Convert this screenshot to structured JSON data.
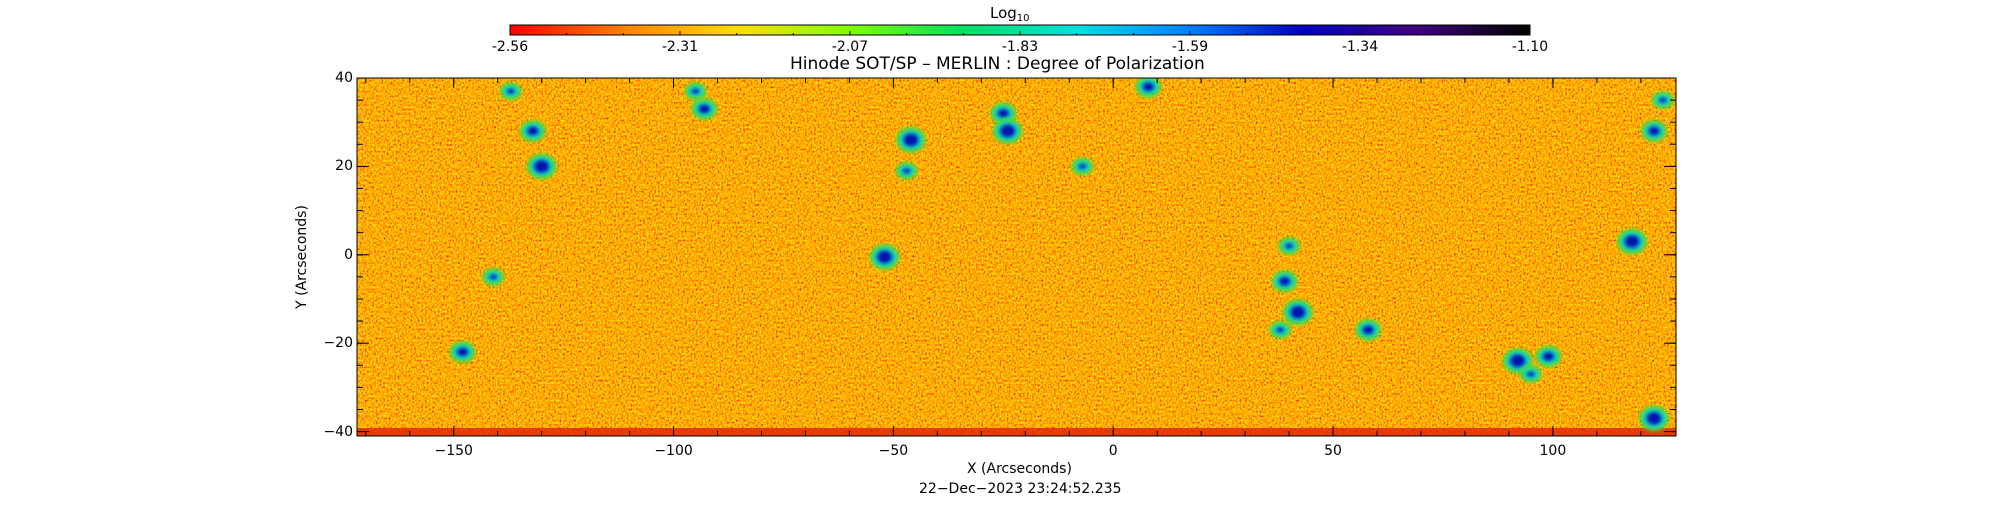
{
  "colorbar": {
    "title_main": "Log",
    "title_sub": "10",
    "ticks": [
      "-2.56",
      "-2.31",
      "-2.07",
      "-1.83",
      "-1.59",
      "-1.34",
      "-1.10"
    ],
    "range": [
      -2.56,
      -1.1
    ],
    "colors": [
      "#ff0000",
      "#ff8000",
      "#ffdd00",
      "#80ff00",
      "#00e060",
      "#00e0e0",
      "#0080ff",
      "#0000c0",
      "#400080",
      "#000000"
    ]
  },
  "chart_data": {
    "type": "heatmap",
    "title": "Hinode SOT/SP – MERLIN : Degree of Polarization",
    "xlabel": "X (Arcseconds)",
    "ylabel": "Y (Arcseconds)",
    "xlim": [
      -172,
      128
    ],
    "ylim": [
      -41,
      40
    ],
    "x_ticks": [
      -150,
      -100,
      -50,
      0,
      50,
      100
    ],
    "x_tick_labels": [
      "−150",
      "−100",
      "−50",
      "0",
      "50",
      "100"
    ],
    "y_ticks": [
      -40,
      -20,
      0,
      20,
      40
    ],
    "y_tick_labels": [
      "−40",
      "−20",
      "0",
      "20",
      "40"
    ],
    "colorscale_label": "Log10 degree of polarization",
    "value_range": [
      -2.56,
      -1.1
    ],
    "background_level": -2.4,
    "strong_polarization_patches": [
      {
        "x": -137,
        "y": 37
      },
      {
        "x": -132,
        "y": 28
      },
      {
        "x": -130,
        "y": 20
      },
      {
        "x": -95,
        "y": 37
      },
      {
        "x": -93,
        "y": 33
      },
      {
        "x": -46,
        "y": 26
      },
      {
        "x": -47,
        "y": 19
      },
      {
        "x": -25,
        "y": 32
      },
      {
        "x": -24,
        "y": 28
      },
      {
        "x": -7,
        "y": 20
      },
      {
        "x": 8,
        "y": 38
      },
      {
        "x": -52,
        "y": -0.5
      },
      {
        "x": 40,
        "y": 2
      },
      {
        "x": 39,
        "y": -6
      },
      {
        "x": 42,
        "y": -13
      },
      {
        "x": 38,
        "y": -17
      },
      {
        "x": 58,
        "y": -17
      },
      {
        "x": 92,
        "y": -24
      },
      {
        "x": 95,
        "y": -27
      },
      {
        "x": 99,
        "y": -23
      },
      {
        "x": 118,
        "y": 3
      },
      {
        "x": 125,
        "y": 35
      },
      {
        "x": 123,
        "y": 28
      },
      {
        "x": 123,
        "y": -37
      },
      {
        "x": -141,
        "y": -5
      },
      {
        "x": -148,
        "y": -22
      }
    ]
  },
  "timestamp": "22−Dec−2023 23:24:52.235"
}
